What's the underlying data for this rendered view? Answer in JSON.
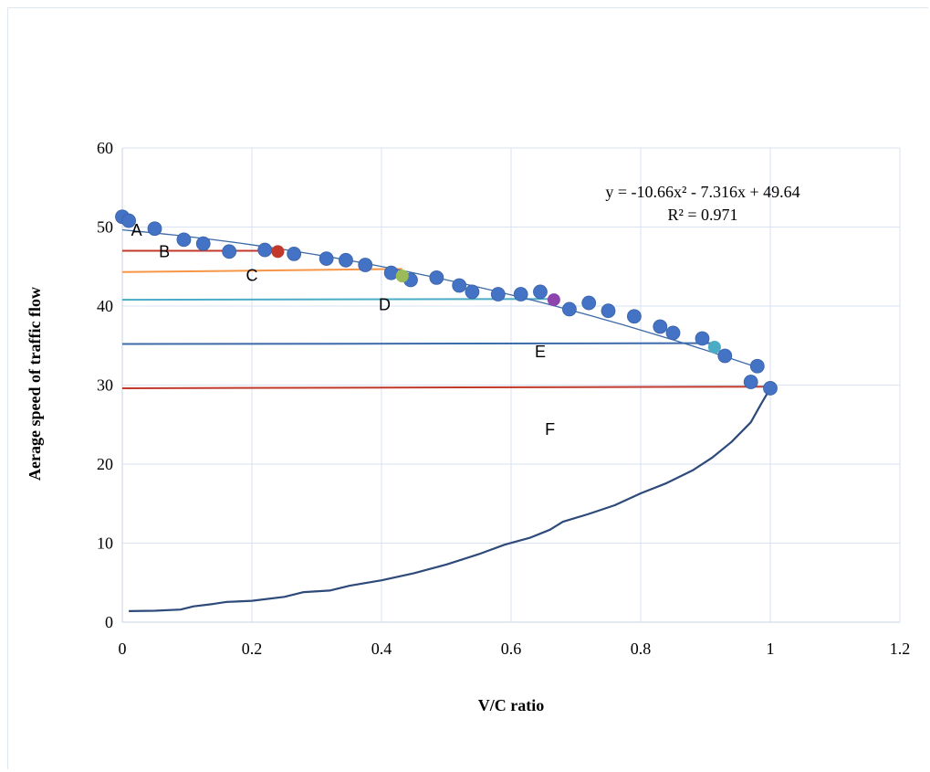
{
  "chart_data": {
    "type": "scatter",
    "xlabel": "V/C ratio",
    "ylabel": "Aerage speed of  traffic flow",
    "xlim": [
      0,
      1.2
    ],
    "ylim": [
      0,
      60
    ],
    "x_ticks": [
      "0",
      "0.2",
      "0.4",
      "0.6",
      "0.8",
      "1",
      "1.2"
    ],
    "y_ticks": [
      "0",
      "10",
      "20",
      "30",
      "40",
      "50",
      "60"
    ],
    "grid": true,
    "equation": "y = -10.66x² - 7.316x + 49.64",
    "r_squared": "R² = 0.971",
    "colors": {
      "points": "#4472c4",
      "trendline": "#3d6aa8",
      "curve": "#2e4a7a",
      "grid": "#dae3f3"
    },
    "points": [
      {
        "x": 0.0,
        "y": 51.3
      },
      {
        "x": 0.01,
        "y": 50.8
      },
      {
        "x": 0.05,
        "y": 49.8
      },
      {
        "x": 0.095,
        "y": 48.4
      },
      {
        "x": 0.125,
        "y": 47.9
      },
      {
        "x": 0.165,
        "y": 46.9
      },
      {
        "x": 0.22,
        "y": 47.1
      },
      {
        "x": 0.265,
        "y": 46.6
      },
      {
        "x": 0.315,
        "y": 46.0
      },
      {
        "x": 0.345,
        "y": 45.8
      },
      {
        "x": 0.375,
        "y": 45.2
      },
      {
        "x": 0.415,
        "y": 44.2
      },
      {
        "x": 0.445,
        "y": 43.3
      },
      {
        "x": 0.485,
        "y": 43.6
      },
      {
        "x": 0.52,
        "y": 42.6
      },
      {
        "x": 0.54,
        "y": 41.8
      },
      {
        "x": 0.58,
        "y": 41.5
      },
      {
        "x": 0.615,
        "y": 41.5
      },
      {
        "x": 0.645,
        "y": 41.8
      },
      {
        "x": 0.69,
        "y": 39.6
      },
      {
        "x": 0.72,
        "y": 40.4
      },
      {
        "x": 0.75,
        "y": 39.4
      },
      {
        "x": 0.79,
        "y": 38.7
      },
      {
        "x": 0.83,
        "y": 37.4
      },
      {
        "x": 0.85,
        "y": 36.6
      },
      {
        "x": 0.895,
        "y": 35.9
      },
      {
        "x": 0.93,
        "y": 33.7
      },
      {
        "x": 0.98,
        "y": 32.4
      },
      {
        "x": 0.97,
        "y": 30.4
      },
      {
        "x": 1.0,
        "y": 29.6
      }
    ],
    "highlight_points": [
      {
        "x": 0.24,
        "y": 46.9,
        "color": "#c0392b"
      },
      {
        "x": 0.432,
        "y": 43.8,
        "color": "#9bbb59"
      },
      {
        "x": 0.666,
        "y": 40.8,
        "color": "#8e44ad"
      },
      {
        "x": 0.914,
        "y": 34.8,
        "color": "#4bacc6"
      }
    ],
    "trendline": {
      "a": -10.66,
      "b": -7.316,
      "c": 49.64,
      "x_from": 0.0,
      "x_to": 0.985
    },
    "level_lines": [
      {
        "y": 47.0,
        "x_to": 0.24,
        "color": "#c0392b"
      },
      {
        "y": 44.3,
        "y_end": 44.7,
        "x_to": 0.432,
        "color": "#f79646"
      },
      {
        "y": 40.8,
        "y_end": 40.9,
        "x_to": 0.666,
        "color": "#4bacc6"
      },
      {
        "y": 35.2,
        "y_end": 35.3,
        "x_to": 0.914,
        "color": "#3d6aa8"
      },
      {
        "y": 29.6,
        "y_end": 29.8,
        "x_to": 1.0,
        "color": "#c0392b"
      }
    ],
    "los_labels": [
      {
        "text": "A",
        "x": 0.022,
        "y": 48.9
      },
      {
        "text": "B",
        "x": 0.065,
        "y": 46.2
      },
      {
        "text": "C",
        "x": 0.2,
        "y": 43.2
      },
      {
        "text": "D",
        "x": 0.405,
        "y": 39.5
      },
      {
        "text": "E",
        "x": 0.645,
        "y": 33.5
      },
      {
        "text": "F",
        "x": 0.66,
        "y": 23.7
      }
    ],
    "curve": [
      [
        0.01,
        1.4
      ],
      [
        0.05,
        1.45
      ],
      [
        0.09,
        1.6
      ],
      [
        0.11,
        2.0
      ],
      [
        0.14,
        2.3
      ],
      [
        0.16,
        2.55
      ],
      [
        0.2,
        2.7
      ],
      [
        0.25,
        3.2
      ],
      [
        0.28,
        3.8
      ],
      [
        0.32,
        4.0
      ],
      [
        0.35,
        4.6
      ],
      [
        0.4,
        5.3
      ],
      [
        0.45,
        6.2
      ],
      [
        0.5,
        7.3
      ],
      [
        0.55,
        8.6
      ],
      [
        0.59,
        9.8
      ],
      [
        0.63,
        10.7
      ],
      [
        0.66,
        11.7
      ],
      [
        0.68,
        12.7
      ],
      [
        0.72,
        13.7
      ],
      [
        0.76,
        14.8
      ],
      [
        0.8,
        16.3
      ],
      [
        0.84,
        17.6
      ],
      [
        0.88,
        19.2
      ],
      [
        0.91,
        20.8
      ],
      [
        0.94,
        22.8
      ],
      [
        0.97,
        25.3
      ],
      [
        0.985,
        27.5
      ],
      [
        1.0,
        29.6
      ]
    ]
  }
}
